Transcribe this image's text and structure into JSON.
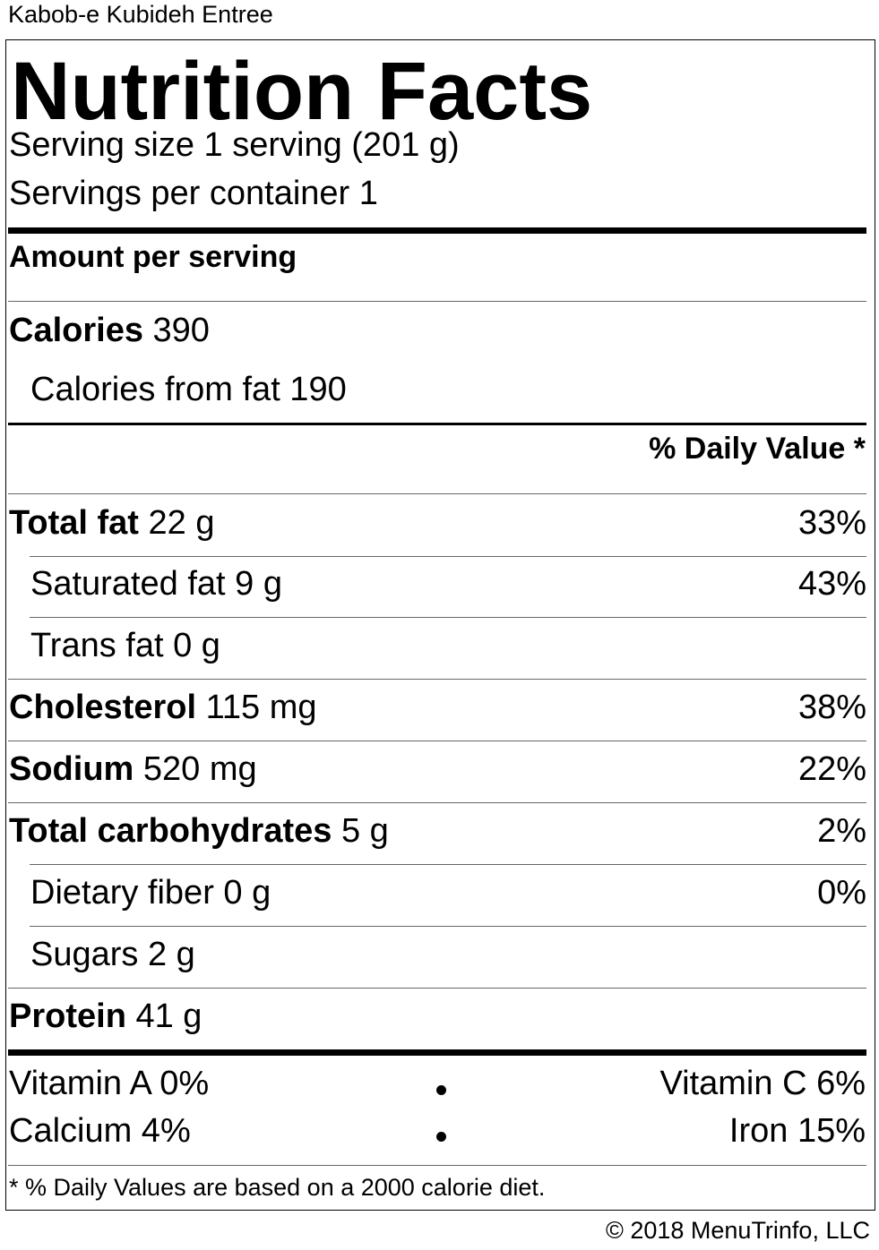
{
  "item_name": "Kabob-e Kubideh Entree",
  "label": {
    "heading": "Nutrition Facts",
    "serving_size": "Serving size 1 serving (201 g)",
    "servings_per_container": "Servings per container 1",
    "amount_per_serving": "Amount per serving",
    "calories": {
      "name": "Calories",
      "value": "390"
    },
    "calories_from_fat": "Calories from fat 190",
    "daily_value_header": "% Daily Value *",
    "nutrients": [
      {
        "name": "Total fat",
        "amount": "22 g",
        "dv": "33%"
      },
      {
        "name": "Saturated fat",
        "amount": "9 g",
        "dv": "43%"
      },
      {
        "name": "Trans fat",
        "amount": "0 g",
        "dv": ""
      },
      {
        "name": "Cholesterol",
        "amount": "115 mg",
        "dv": "38%"
      },
      {
        "name": "Sodium",
        "amount": "520 mg",
        "dv": "22%"
      },
      {
        "name": "Total carbohydrates",
        "amount": "5 g",
        "dv": "2%"
      },
      {
        "name": "Dietary fiber",
        "amount": "0 g",
        "dv": "0%"
      },
      {
        "name": "Sugars",
        "amount": "2 g",
        "dv": ""
      },
      {
        "name": "Protein",
        "amount": "41 g",
        "dv": ""
      }
    ],
    "vitamins": {
      "vitamin_a": "Vitamin A 0%",
      "vitamin_c": "Vitamin C 6%",
      "calcium": "Calcium 4%",
      "iron": "Iron 15%"
    },
    "footnote": "* % Daily Values are based on a 2000 calorie diet."
  },
  "copyright": "© 2018 MenuTrinfo, LLC"
}
